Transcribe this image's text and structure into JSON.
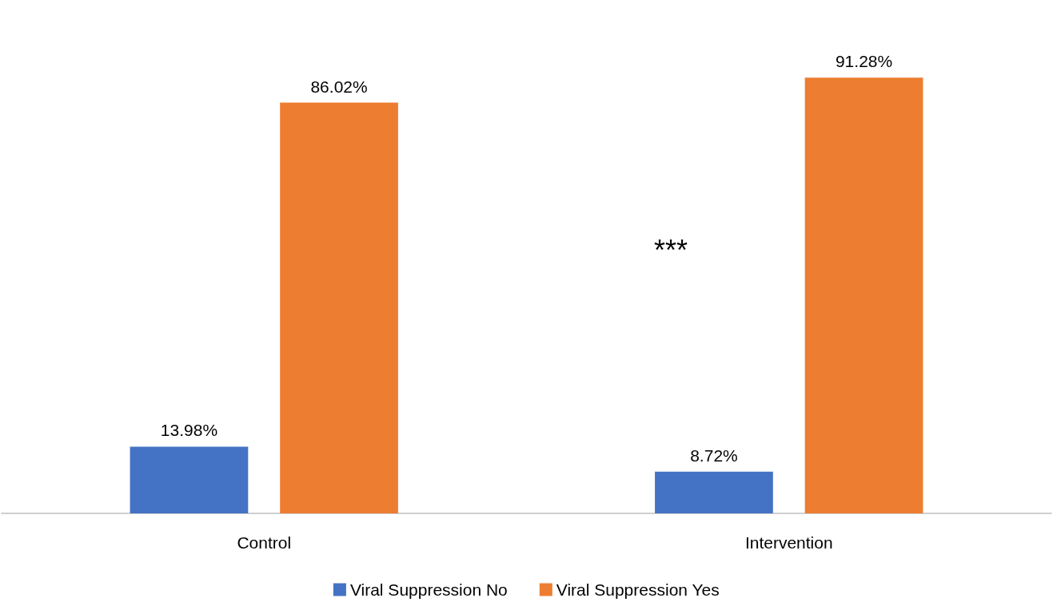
{
  "chart_data": {
    "type": "bar",
    "categories": [
      "Control",
      "Intervention"
    ],
    "series": [
      {
        "name": "Viral Suppression No",
        "color": "#4472c4",
        "values": [
          13.98,
          8.72
        ],
        "value_labels": [
          "13.98%",
          "8.72%"
        ]
      },
      {
        "name": "Viral Suppression Yes",
        "color": "#ed7d31",
        "values": [
          86.02,
          91.28
        ],
        "value_labels": [
          "86.02%",
          "91.28%"
        ]
      }
    ],
    "annotations": [
      "***"
    ],
    "legend": "bottom"
  }
}
